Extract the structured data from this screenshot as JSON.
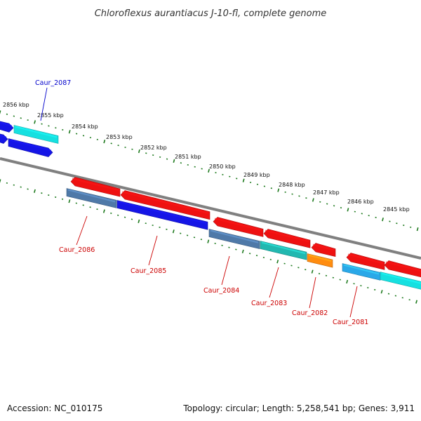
{
  "title": "Chloroflexus aurantiacus J-10-fl, complete genome",
  "footer": {
    "accession": "Accession: NC_010175",
    "summary": "Topology: circular; Length: 5,258,541 bp; Genes: 3,911"
  },
  "colors": {
    "backbone": "#808080",
    "tick": "#1e7a1e",
    "label_forward": "#0000cc",
    "label_reverse": "#cc0000"
  },
  "ticks": [
    {
      "label": "2856 kbp"
    },
    {
      "label": "2855 kbp"
    },
    {
      "label": "2854 kbp"
    },
    {
      "label": "2853 kbp"
    },
    {
      "label": "2852 kbp"
    },
    {
      "label": "2851 kbp"
    },
    {
      "label": "2850 kbp"
    },
    {
      "label": "2849 kbp"
    },
    {
      "label": "2848 kbp"
    },
    {
      "label": "2847 kbp"
    },
    {
      "label": "2846 kbp"
    },
    {
      "label": "2845 kbp"
    }
  ],
  "gene_labels": [
    {
      "name": "Caur_2087",
      "strand": "forward"
    },
    {
      "name": "Caur_2086",
      "strand": "reverse"
    },
    {
      "name": "Caur_2085",
      "strand": "reverse"
    },
    {
      "name": "Caur_2084",
      "strand": "reverse"
    },
    {
      "name": "Caur_2083",
      "strand": "reverse"
    },
    {
      "name": "Caur_2082",
      "strand": "reverse"
    },
    {
      "name": "Caur_2081",
      "strand": "reverse"
    }
  ]
}
